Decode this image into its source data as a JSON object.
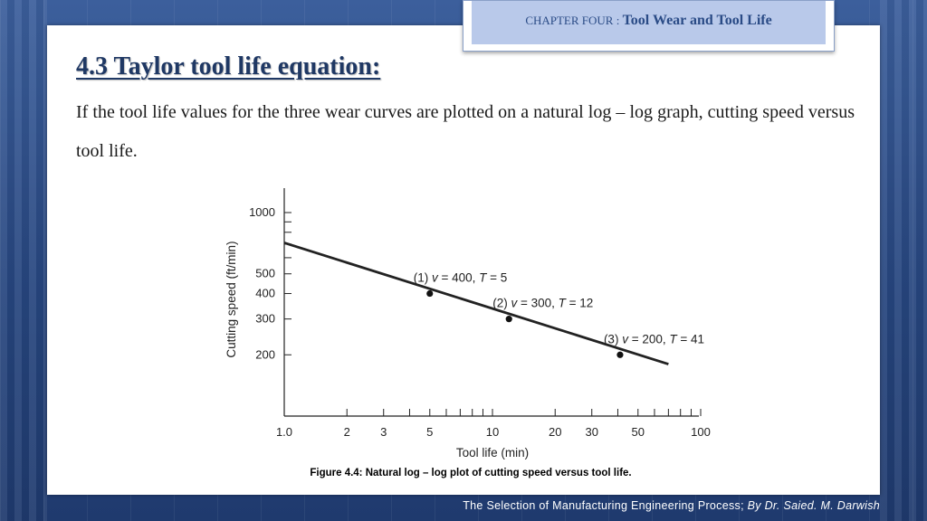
{
  "header": {
    "chapter_prefix": "CHAPTER FOUR : ",
    "chapter_title": "Tool Wear and Tool Life"
  },
  "slide": {
    "title": "4.3 Taylor tool life equation:",
    "body": "If the tool life values for the three wear curves are plotted on a natural log – log graph, cutting speed versus tool life."
  },
  "chart_data": {
    "type": "line",
    "xscale": "log",
    "yscale": "log",
    "xlabel": "Tool life (min)",
    "ylabel": "Cutting speed (ft/min)",
    "xlim": [
      1.0,
      100
    ],
    "ylim": [
      100,
      1000
    ],
    "x_tick_labels": [
      "1.0",
      "2",
      "3",
      "5",
      "10",
      "20",
      "30",
      "50",
      "100"
    ],
    "y_tick_labels": [
      "200",
      "300",
      "400",
      "500",
      "1000"
    ],
    "line": {
      "x": [
        1.0,
        70
      ],
      "y": [
        710,
        180
      ]
    },
    "points": [
      {
        "label_prefix": "(1) ",
        "v_text": "v",
        "v_value": " = 400, ",
        "t_text": "T",
        "t_value": " = 5",
        "x": 5,
        "y": 400
      },
      {
        "label_prefix": "(2) ",
        "v_text": "v",
        "v_value": " = 300, ",
        "t_text": "T",
        "t_value": " = 12",
        "x": 12,
        "y": 300
      },
      {
        "label_prefix": "(3) ",
        "v_text": "v",
        "v_value": " = 200, ",
        "t_text": "T",
        "t_value": " = 41",
        "x": 41,
        "y": 200
      }
    ],
    "caption": "Figure 4.4: Natural log – log plot of cutting speed versus tool life."
  },
  "footer": {
    "text": "The Selection of Manufacturing Engineering Process; ",
    "author": "By Dr. Saied. M. Darwish"
  },
  "colors": {
    "background": "#2c4c86",
    "title": "#1f3864",
    "chapter_box": "#b9c9ea",
    "line": "#222222"
  }
}
